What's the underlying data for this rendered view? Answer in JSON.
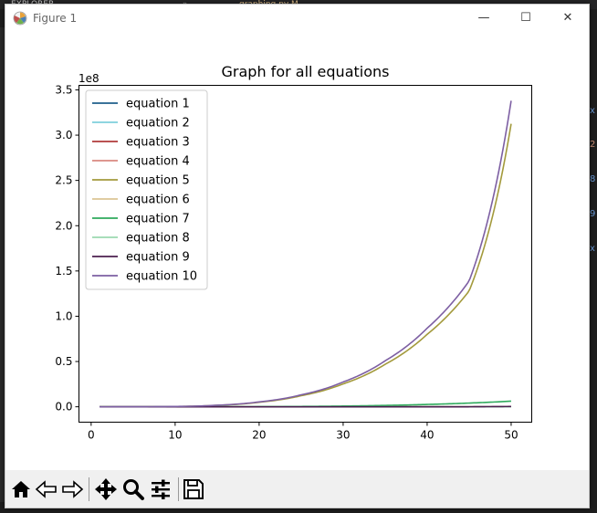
{
  "background": {
    "tab_explorer": "EXPLORER",
    "tab_file": "graphing.py M",
    "right_chars": [
      "x",
      "2",
      "8",
      "9",
      "x"
    ]
  },
  "window": {
    "title": "Figure 1",
    "minimize_glyph": "—",
    "maximize_glyph": "☐",
    "close_glyph": "✕"
  },
  "toolbar": {
    "icons": [
      "home-icon",
      "back-icon",
      "forward-icon",
      "pan-icon",
      "zoom-icon",
      "configure-icon",
      "save-icon"
    ]
  },
  "chart_data": {
    "type": "line",
    "title": "Graph for all equations",
    "xlabel": "",
    "ylabel": "",
    "y_offset_text": "1e8",
    "xlim": [
      -1.45,
      52.45
    ],
    "ylim": [
      -0.17,
      3.55
    ],
    "xticks": [
      0,
      10,
      20,
      30,
      40,
      50
    ],
    "xtick_labels": [
      "0",
      "10",
      "20",
      "30",
      "40",
      "50"
    ],
    "yticks": [
      0,
      0.5,
      1.0,
      1.5,
      2.0,
      2.5,
      3.0,
      3.5
    ],
    "ytick_labels": [
      "0.0",
      "0.5",
      "1.0",
      "1.5",
      "2.0",
      "2.5",
      "3.0",
      "3.5"
    ],
    "grid": false,
    "legend_position": "top-left",
    "x": [
      1,
      5,
      10,
      15,
      20,
      25,
      30,
      35,
      40,
      45,
      50
    ],
    "series": [
      {
        "name": "equation 1",
        "color": "#1f5f8b",
        "values": [
          0,
          0,
          0,
          0,
          0,
          0,
          0,
          0,
          0,
          0,
          0
        ]
      },
      {
        "name": "equation 2",
        "color": "#7ecfdb",
        "values": [
          0,
          0,
          0,
          0,
          0,
          0,
          0,
          0,
          0,
          0,
          0
        ]
      },
      {
        "name": "equation 3",
        "color": "#b03a3a",
        "values": [
          0,
          0,
          0,
          0,
          0,
          0,
          0,
          0,
          0,
          0,
          0
        ]
      },
      {
        "name": "equation 4",
        "color": "#d98880",
        "values": [
          0,
          0,
          0,
          0,
          0,
          0,
          0,
          0,
          0,
          0,
          0
        ]
      },
      {
        "name": "equation 5",
        "color": "#a39a3c",
        "values": [
          0,
          0.0006,
          0.0031,
          0.0158,
          0.05,
          0.122,
          0.253,
          0.469,
          0.8,
          1.28,
          3.125
        ]
      },
      {
        "name": "equation 6",
        "color": "#dcc495",
        "values": [
          0,
          0,
          0,
          0,
          0,
          0,
          0,
          0,
          0,
          0,
          0
        ]
      },
      {
        "name": "equation 7",
        "color": "#2eaa5c",
        "values": [
          0,
          0,
          0.0001,
          0.0005,
          0.0016,
          0.004,
          0.008,
          0.015,
          0.026,
          0.041,
          0.0625
        ]
      },
      {
        "name": "equation 8",
        "color": "#9bdab0",
        "values": [
          0,
          0,
          0,
          0,
          0,
          0,
          0,
          0,
          0,
          0,
          0
        ]
      },
      {
        "name": "equation 9",
        "color": "#4b1f4f",
        "values": [
          0,
          0,
          0,
          0,
          0,
          0,
          0,
          0,
          0,
          0,
          0.003
        ]
      },
      {
        "name": "equation 10",
        "color": "#7d5fa3",
        "values": [
          0,
          0.0007,
          0.0034,
          0.0172,
          0.054,
          0.132,
          0.274,
          0.508,
          0.868,
          1.39,
          3.38
        ]
      }
    ]
  }
}
